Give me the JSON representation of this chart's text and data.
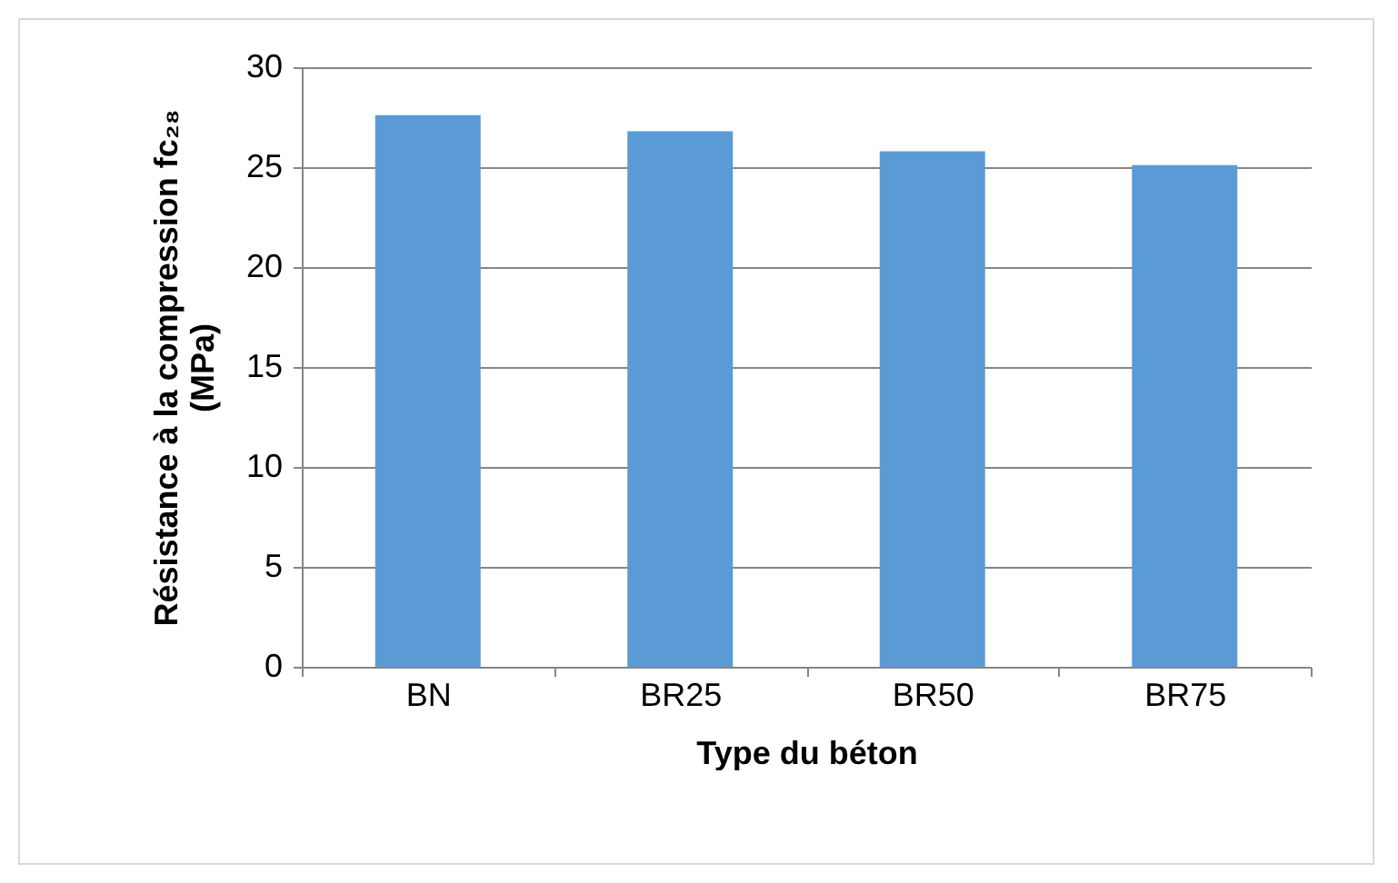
{
  "chart_data": {
    "type": "bar",
    "xlabel": "Type du béton",
    "ylabel": "Résistance à la compression fc₂₈ (MPa)",
    "categories": [
      "BN",
      "BR25",
      "BR50",
      "BR75"
    ],
    "values": [
      27.6,
      26.8,
      25.8,
      25.1
    ],
    "color": "#5b9bd5",
    "ylim": [
      0,
      30
    ],
    "yticks": [
      0,
      5,
      10,
      15,
      20,
      25,
      30
    ],
    "grid": "y"
  }
}
